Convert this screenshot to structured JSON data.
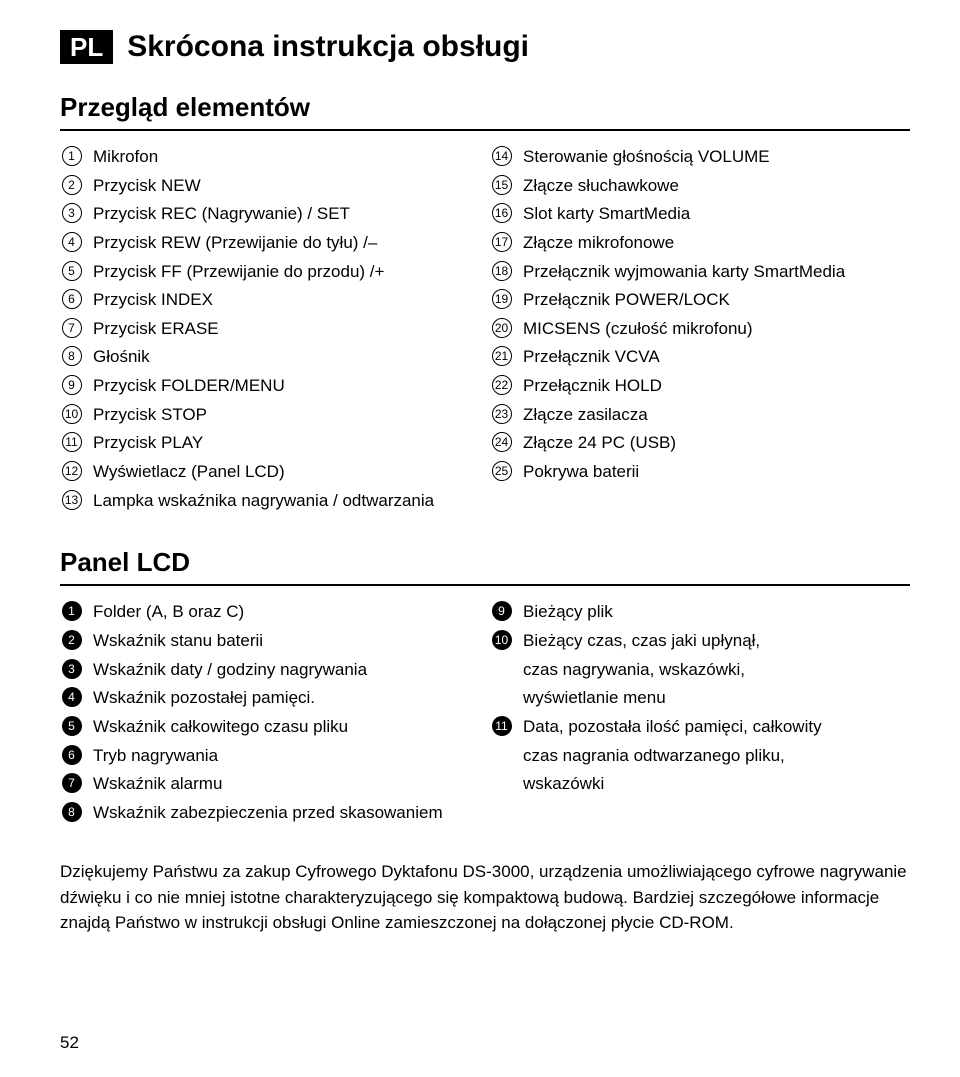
{
  "lang_badge": "PL",
  "main_title": "Skrócona instrukcja obsługi",
  "section1": {
    "title": "Przegląd elementów",
    "left": [
      {
        "n": "1",
        "t": "Mikrofon"
      },
      {
        "n": "2",
        "t": "Przycisk NEW"
      },
      {
        "n": "3",
        "t": "Przycisk REC (Nagrywanie) / SET"
      },
      {
        "n": "4",
        "t": "Przycisk REW (Przewijanie do tyłu) /–"
      },
      {
        "n": "5",
        "t": "Przycisk FF (Przewijanie do przodu) /+"
      },
      {
        "n": "6",
        "t": "Przycisk INDEX"
      },
      {
        "n": "7",
        "t": "Przycisk ERASE"
      },
      {
        "n": "8",
        "t": "Głośnik"
      },
      {
        "n": "9",
        "t": "Przycisk FOLDER/MENU"
      },
      {
        "n": "10",
        "t": "Przycisk STOP"
      },
      {
        "n": "11",
        "t": "Przycisk PLAY"
      },
      {
        "n": "12",
        "t": "Wyświetlacz (Panel LCD)"
      },
      {
        "n": "13",
        "t": "Lampka wskaźnika nagrywania / odtwarzania"
      }
    ],
    "right": [
      {
        "n": "14",
        "t": "Sterowanie głośnością VOLUME"
      },
      {
        "n": "15",
        "t": "Złącze słuchawkowe"
      },
      {
        "n": "16",
        "t": "Slot karty SmartMedia"
      },
      {
        "n": "17",
        "t": "Złącze mikrofonowe"
      },
      {
        "n": "18",
        "t": "Przełącznik wyjmowania karty SmartMedia"
      },
      {
        "n": "19",
        "t": "Przełącznik POWER/LOCK"
      },
      {
        "n": "20",
        "t": "MICSENS (czułość mikrofonu)"
      },
      {
        "n": "21",
        "t": "Przełącznik VCVA"
      },
      {
        "n": "22",
        "t": "Przełącznik HOLD"
      },
      {
        "n": "23",
        "t": "Złącze zasilacza"
      },
      {
        "n": "24",
        "t": "Złącze 24 PC (USB)"
      },
      {
        "n": "25",
        "t": "Pokrywa baterii"
      }
    ]
  },
  "section2": {
    "title": "Panel LCD",
    "left": [
      {
        "n": "1",
        "t": "Folder (A, B oraz C)"
      },
      {
        "n": "2",
        "t": "Wskaźnik stanu baterii"
      },
      {
        "n": "3",
        "t": "Wskaźnik daty / godziny nagrywania"
      },
      {
        "n": "4",
        "t": "Wskaźnik pozostałej pamięci."
      },
      {
        "n": "5",
        "t": "Wskaźnik całkowitego czasu pliku"
      },
      {
        "n": "6",
        "t": "Tryb nagrywania"
      },
      {
        "n": "7",
        "t": "Wskaźnik alarmu"
      },
      {
        "n": "8",
        "t": "Wskaźnik zabezpieczenia przed skasowaniem"
      }
    ],
    "right": [
      {
        "n": "9",
        "t": "Bieżący plik"
      },
      {
        "n": "10",
        "t": "Bieżący czas, czas jaki upłynął,"
      },
      {
        "n": "",
        "t": "czas nagrywania, wskazówki,"
      },
      {
        "n": "",
        "t": "wyświetlanie menu"
      },
      {
        "n": "11",
        "t": "Data, pozostała ilość pamięci, całkowity"
      },
      {
        "n": "",
        "t": "czas nagrania odtwarzanego pliku,"
      },
      {
        "n": "",
        "t": "wskazówki"
      }
    ]
  },
  "paragraph": "Dziękujemy Państwu za zakup Cyfrowego Dyktafonu DS-3000, urządzenia umożliwiającego cyfrowe nagrywanie dźwięku i co nie mniej istotne charakteryzującego się kompaktową budową. Bardziej szczegółowe informacje znajdą Państwo w instrukcji obsługi Online zamieszczonej na dołączonej płycie CD-ROM.",
  "page_num": "52"
}
